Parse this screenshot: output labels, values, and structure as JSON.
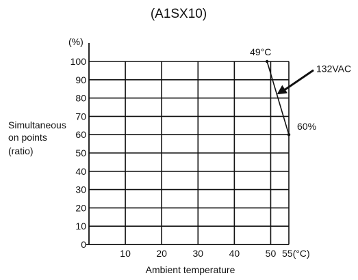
{
  "chart_data": {
    "type": "line",
    "title": "(A1SX10)",
    "xlabel": "Ambient temperature",
    "ylabel_lines": [
      "Simultaneous",
      "on points",
      "(ratio)"
    ],
    "y_unit_label": "(%)",
    "x_ticks": [
      {
        "value": 10,
        "label": "10"
      },
      {
        "value": 20,
        "label": "20"
      },
      {
        "value": 30,
        "label": "30"
      },
      {
        "value": 40,
        "label": "40"
      },
      {
        "value": 50,
        "label": "50"
      },
      {
        "value": 55,
        "label": "55(°C)"
      }
    ],
    "y_ticks": [
      {
        "value": 0,
        "label": "0"
      },
      {
        "value": 10,
        "label": "10"
      },
      {
        "value": 20,
        "label": "20"
      },
      {
        "value": 30,
        "label": "30"
      },
      {
        "value": 40,
        "label": "40"
      },
      {
        "value": 50,
        "label": "50"
      },
      {
        "value": 60,
        "label": "60"
      },
      {
        "value": 70,
        "label": "70"
      },
      {
        "value": 80,
        "label": "80"
      },
      {
        "value": 90,
        "label": "90"
      },
      {
        "value": 100,
        "label": "100"
      }
    ],
    "xlim": [
      0,
      55
    ],
    "ylim": [
      0,
      100
    ],
    "grid": true,
    "series": [
      {
        "name": "132VAC",
        "points": [
          {
            "x": 49,
            "y": 100
          },
          {
            "x": 55,
            "y": 60
          }
        ]
      }
    ],
    "annotations": [
      {
        "text": "49°C",
        "anchor": {
          "x": 49,
          "y": 100
        }
      },
      {
        "text": "60%",
        "anchor": {
          "x": 55,
          "y": 60
        }
      }
    ]
  }
}
